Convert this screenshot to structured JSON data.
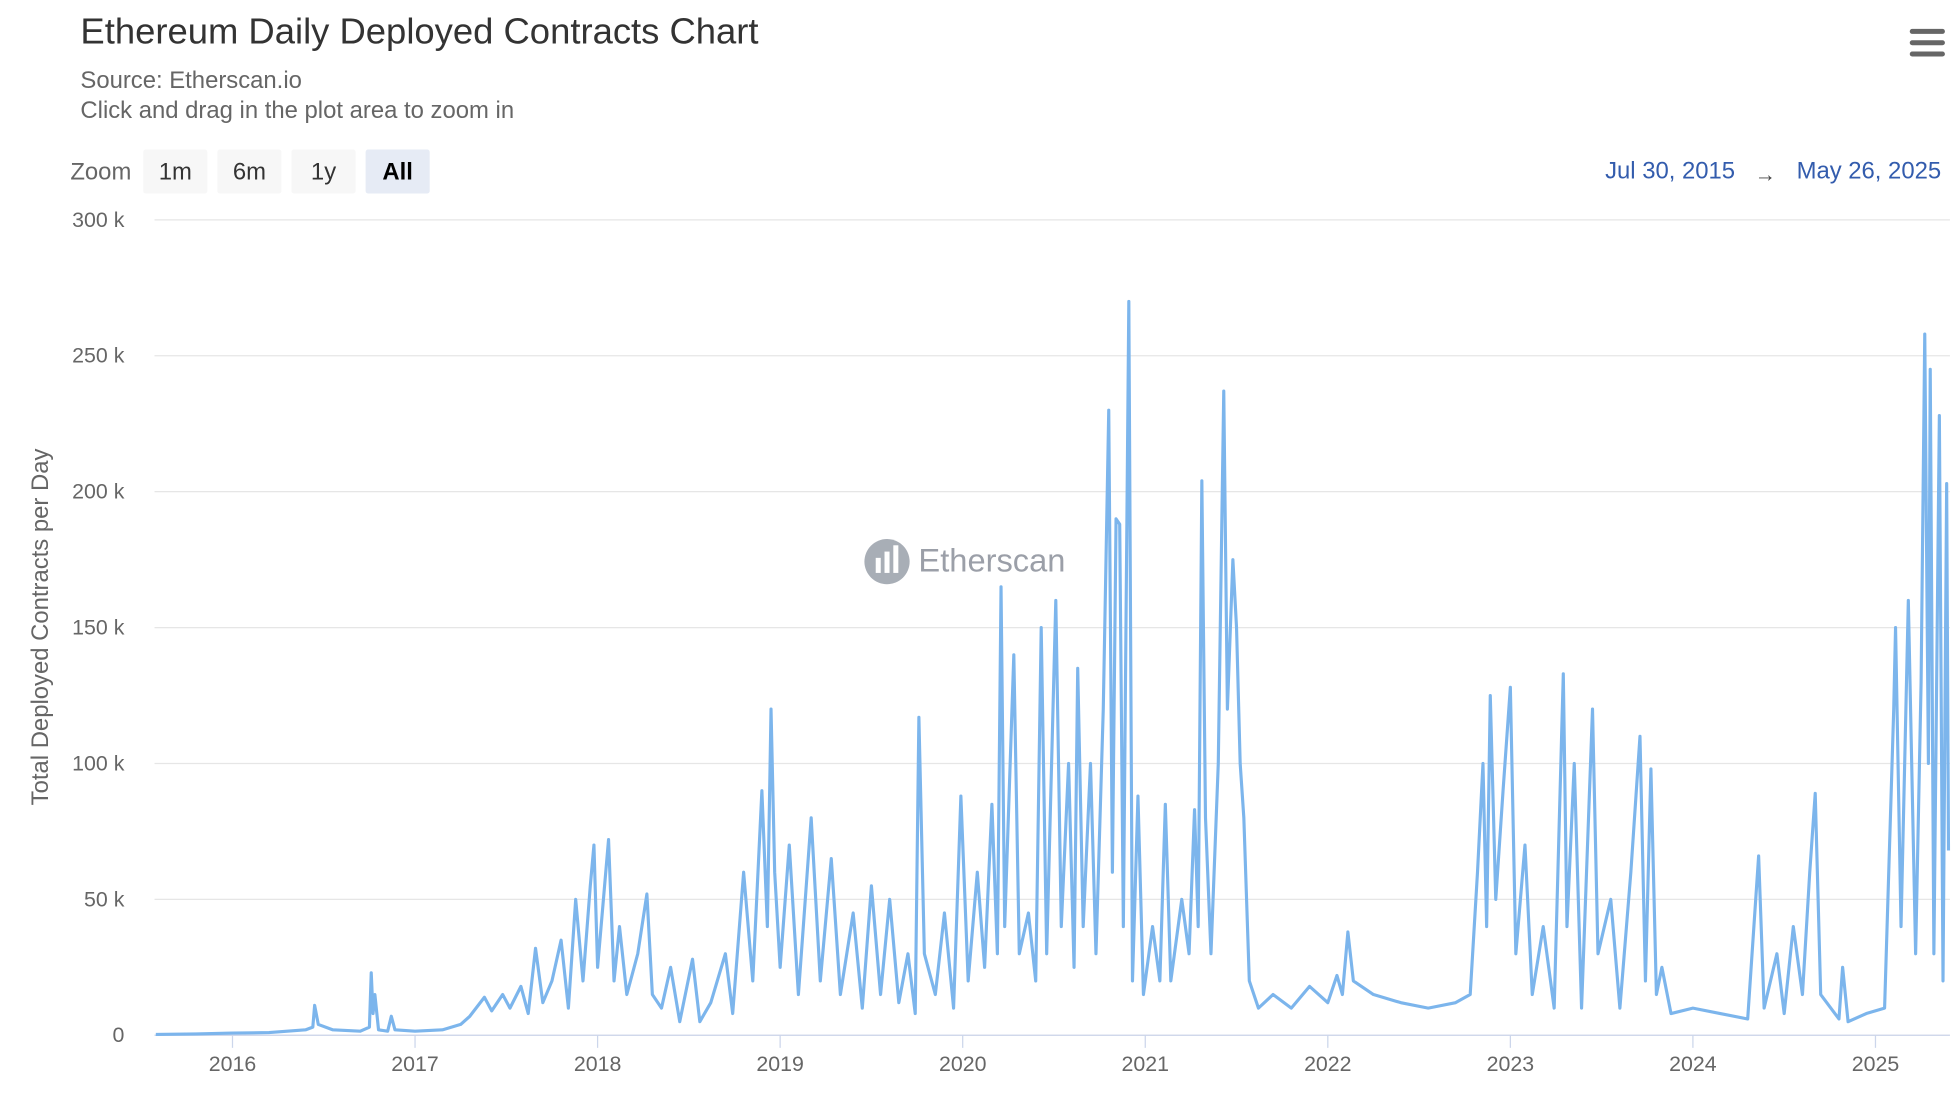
{
  "chart_data": {
    "type": "line",
    "title": "Ethereum Daily Deployed Contracts Chart",
    "source": "Source: Etherscan.io",
    "subtitle": "Click and drag in the plot area to zoom in",
    "zoom_label": "Zoom",
    "zoom_buttons": [
      "1m",
      "6m",
      "1y",
      "All"
    ],
    "zoom_selected": "All",
    "range_start": "Jul 30, 2015",
    "range_arrow": "→",
    "range_end": "May 26, 2025",
    "watermark": "Etherscan",
    "y_label": "Total Deployed Contracts per Day",
    "color": "#7cb5ec",
    "grid": true,
    "xlim": [
      2015.573,
      2025.408
    ],
    "xticks": [
      2016,
      2017,
      2018,
      2019,
      2020,
      2021,
      2022,
      2023,
      2024,
      2025
    ],
    "ylim": [
      0,
      300000
    ],
    "yticks": [
      {
        "value": 0,
        "label": "0"
      },
      {
        "value": 50000,
        "label": "50 k"
      },
      {
        "value": 100000,
        "label": "100 k"
      },
      {
        "value": 150000,
        "label": "150 k"
      },
      {
        "value": 200000,
        "label": "200 k"
      },
      {
        "value": 250000,
        "label": "250 k"
      },
      {
        "value": 300000,
        "label": "300 k"
      }
    ],
    "x": [
      2015.58,
      2015.8,
      2016.0,
      2016.2,
      2016.4,
      2016.44,
      2016.45,
      2016.47,
      2016.55,
      2016.7,
      2016.75,
      2016.76,
      2016.77,
      2016.78,
      2016.8,
      2016.85,
      2016.87,
      2016.89,
      2017.0,
      2017.15,
      2017.25,
      2017.3,
      2017.38,
      2017.42,
      2017.48,
      2017.52,
      2017.58,
      2017.62,
      2017.66,
      2017.7,
      2017.75,
      2017.8,
      2017.84,
      2017.88,
      2017.92,
      2017.96,
      2017.98,
      2018.0,
      2018.06,
      2018.09,
      2018.12,
      2018.16,
      2018.22,
      2018.27,
      2018.3,
      2018.35,
      2018.4,
      2018.45,
      2018.52,
      2018.56,
      2018.62,
      2018.7,
      2018.74,
      2018.8,
      2018.85,
      2018.9,
      2018.93,
      2018.95,
      2018.97,
      2019.0,
      2019.05,
      2019.1,
      2019.17,
      2019.22,
      2019.28,
      2019.33,
      2019.4,
      2019.45,
      2019.5,
      2019.55,
      2019.6,
      2019.65,
      2019.7,
      2019.74,
      2019.76,
      2019.79,
      2019.85,
      2019.9,
      2019.95,
      2019.99,
      2020.03,
      2020.08,
      2020.12,
      2020.16,
      2020.19,
      2020.21,
      2020.23,
      2020.26,
      2020.28,
      2020.31,
      2020.36,
      2020.4,
      2020.43,
      2020.46,
      2020.51,
      2020.54,
      2020.58,
      2020.61,
      2020.63,
      2020.66,
      2020.7,
      2020.73,
      2020.77,
      2020.8,
      2020.82,
      2020.84,
      2020.86,
      2020.88,
      2020.91,
      2020.93,
      2020.96,
      2020.99,
      2021.04,
      2021.08,
      2021.11,
      2021.14,
      2021.2,
      2021.24,
      2021.27,
      2021.29,
      2021.31,
      2021.33,
      2021.36,
      2021.4,
      2021.43,
      2021.45,
      2021.48,
      2021.5,
      2021.52,
      2021.54,
      2021.57,
      2021.62,
      2021.7,
      2021.8,
      2021.9,
      2022.0,
      2022.05,
      2022.08,
      2022.11,
      2022.14,
      2022.25,
      2022.4,
      2022.55,
      2022.7,
      2022.78,
      2022.82,
      2022.85,
      2022.87,
      2022.89,
      2022.92,
      2022.96,
      2023.0,
      2023.03,
      2023.08,
      2023.12,
      2023.18,
      2023.24,
      2023.29,
      2023.31,
      2023.35,
      2023.39,
      2023.45,
      2023.48,
      2023.55,
      2023.6,
      2023.66,
      2023.71,
      2023.74,
      2023.77,
      2023.8,
      2023.83,
      2023.88,
      2024.0,
      2024.15,
      2024.3,
      2024.36,
      2024.39,
      2024.46,
      2024.5,
      2024.55,
      2024.6,
      2024.64,
      2024.67,
      2024.7,
      2024.8,
      2024.82,
      2024.85,
      2024.95,
      2025.05,
      2025.1,
      2025.11,
      2025.14,
      2025.18,
      2025.22,
      2025.25,
      2025.27,
      2025.29,
      2025.3,
      2025.32,
      2025.35,
      2025.37,
      2025.39,
      2025.4
    ],
    "series": [
      {
        "name": "Total Deployed Contracts per Day",
        "color": "#7cb5ec",
        "values": [
          300,
          500,
          800,
          1000,
          2000,
          3000,
          11000,
          4000,
          2000,
          1500,
          3000,
          23000,
          8000,
          15000,
          2000,
          1500,
          7000,
          2000,
          1500,
          2000,
          4000,
          7000,
          14000,
          9000,
          15000,
          10000,
          18000,
          8000,
          32000,
          12000,
          20000,
          35000,
          10000,
          50000,
          20000,
          55000,
          70000,
          25000,
          72000,
          20000,
          40000,
          15000,
          30000,
          52000,
          15000,
          10000,
          25000,
          5000,
          28000,
          5000,
          12000,
          30000,
          8000,
          60000,
          20000,
          90000,
          40000,
          120000,
          60000,
          25000,
          70000,
          15000,
          80000,
          20000,
          65000,
          15000,
          45000,
          10000,
          55000,
          15000,
          50000,
          12000,
          30000,
          8000,
          117000,
          30000,
          15000,
          45000,
          10000,
          88000,
          20000,
          60000,
          25000,
          85000,
          30000,
          165000,
          40000,
          100000,
          140000,
          30000,
          45000,
          20000,
          150000,
          30000,
          160000,
          40000,
          100000,
          25000,
          135000,
          40000,
          100000,
          30000,
          120000,
          230000,
          60000,
          190000,
          188000,
          40000,
          270000,
          20000,
          88000,
          15000,
          40000,
          20000,
          85000,
          20000,
          50000,
          30000,
          83000,
          40000,
          204000,
          80000,
          30000,
          100000,
          237000,
          120000,
          175000,
          150000,
          100000,
          80000,
          20000,
          10000,
          15000,
          10000,
          18000,
          12000,
          22000,
          15000,
          38000,
          20000,
          15000,
          12000,
          10000,
          12000,
          15000,
          60000,
          100000,
          40000,
          125000,
          50000,
          90000,
          128000,
          30000,
          70000,
          15000,
          40000,
          10000,
          133000,
          40000,
          100000,
          10000,
          120000,
          30000,
          50000,
          10000,
          60000,
          110000,
          20000,
          98000,
          15000,
          25000,
          8000,
          10000,
          8000,
          6000,
          66000,
          10000,
          30000,
          8000,
          40000,
          15000,
          60000,
          89000,
          15000,
          6000,
          25000,
          5000,
          8000,
          10000,
          120000,
          150000,
          40000,
          160000,
          30000,
          130000,
          258000,
          100000,
          245000,
          30000,
          228000,
          20000,
          203000,
          68000
        ]
      }
    ]
  }
}
